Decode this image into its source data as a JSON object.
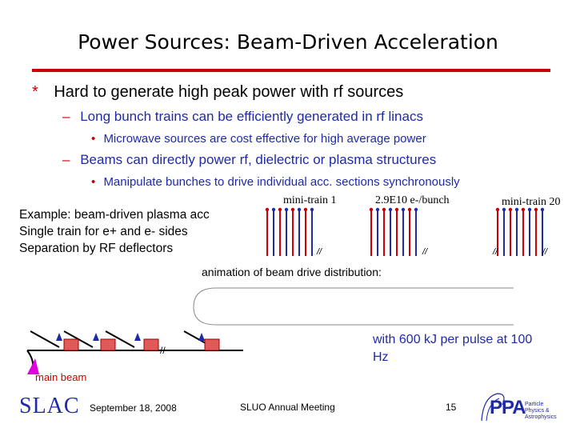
{
  "title": "Power Sources: Beam-Driven Acceleration",
  "bullets": {
    "b1_mark": "*",
    "b1": "Hard to generate high peak power with rf sources",
    "b1a_mark": "–",
    "b1a": "Long bunch trains can be efficiently generated in rf linacs",
    "b1a1_mark": "•",
    "b1a1": "Microwave sources are cost effective for high average power",
    "b1b_mark": "–",
    "b1b": "Beams can directly power rf, dielectric or plasma structures",
    "b1b1_mark": "•",
    "b1b1": "Manipulate bunches to drive individual acc. sections synchronously"
  },
  "example": {
    "line1": "Example: beam-driven plasma acc",
    "line2": "Single train for e+ and e- sides",
    "line3": "Separation by RF deflectors"
  },
  "train": {
    "label_first": "mini-train 1",
    "label_bunch": "2.9E10 e-/bunch",
    "label_last": "mini-train 20",
    "break_mark": "//",
    "colors": {
      "red": "#cc0000",
      "blue": "#1f2aa8"
    }
  },
  "animation": {
    "label": "animation of beam drive distribution:",
    "energy": "with 600 kJ per pulse at 100 Hz",
    "main_beam": "main beam",
    "break_mark": "//"
  },
  "footer": {
    "logo_left": "SLAC",
    "date": "September 18, 2008",
    "meeting": "SLUO Annual Meeting",
    "page": "15",
    "logo_right": "PPA",
    "logo_right_sub": "Particle Physics & Astrophysics"
  }
}
